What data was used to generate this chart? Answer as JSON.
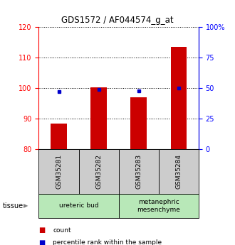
{
  "title": "GDS1572 / AF044574_g_at",
  "samples": [
    "GSM35281",
    "GSM35282",
    "GSM35283",
    "GSM35284"
  ],
  "counts": [
    88.5,
    100.2,
    97.0,
    113.5
  ],
  "percentiles": [
    47.0,
    49.0,
    48.0,
    50.0
  ],
  "ylim_left": [
    80,
    120
  ],
  "ylim_right": [
    0,
    100
  ],
  "yticks_left": [
    80,
    90,
    100,
    110,
    120
  ],
  "yticks_right": [
    0,
    25,
    50,
    75,
    100
  ],
  "ytick_right_labels": [
    "0",
    "25",
    "50",
    "75",
    "100%"
  ],
  "bar_color": "#cc0000",
  "point_color": "#0000cc",
  "tissue_groups": [
    {
      "label": "ureteric bud",
      "samples": [
        0,
        1
      ],
      "color": "#b8e8b8"
    },
    {
      "label": "metanephric\nmesenchyme",
      "samples": [
        2,
        3
      ],
      "color": "#b8e8b8"
    }
  ],
  "bar_width": 0.4,
  "background_sample": "#cccccc",
  "legend_items": [
    {
      "color": "#cc0000",
      "label": "count"
    },
    {
      "color": "#0000cc",
      "label": "percentile rank within the sample"
    }
  ]
}
